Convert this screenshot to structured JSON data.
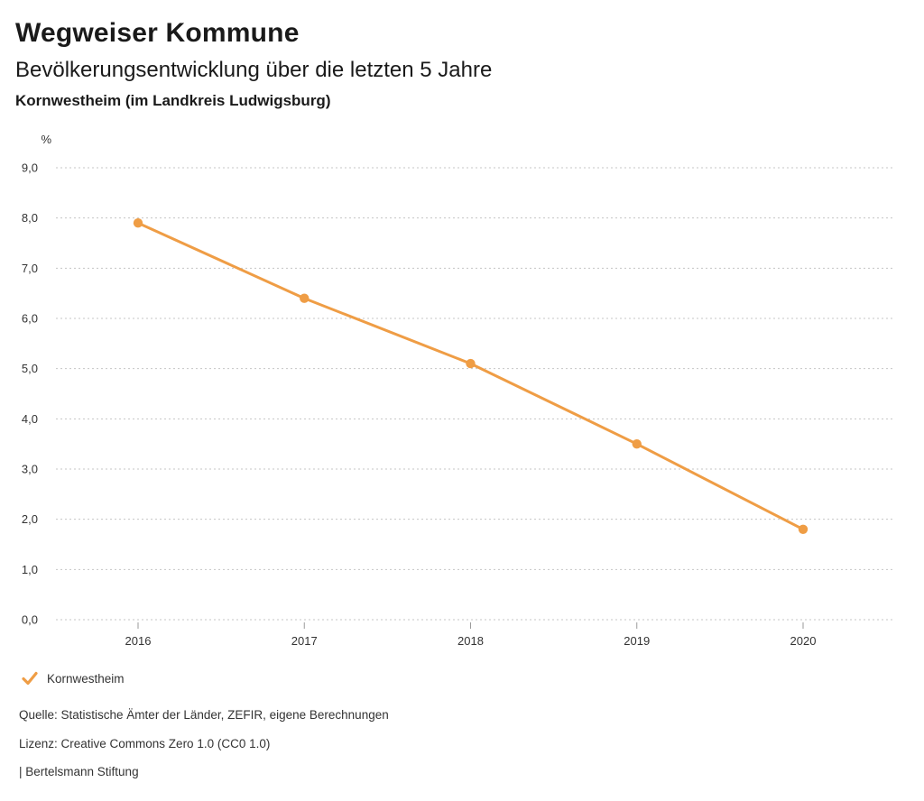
{
  "header": {
    "title": "Wegweiser Kommune",
    "subtitle": "Bevölkerungsentwicklung über die letzten 5 Jahre",
    "region": "Kornwestheim (im Landkreis Ludwigsburg)"
  },
  "chart_data": {
    "type": "line",
    "title": "Bevölkerungsentwicklung über die letzten 5 Jahre",
    "subtitle": "Kornwestheim (im Landkreis Ludwigsburg)",
    "unit": "%",
    "categories": [
      "2016",
      "2017",
      "2018",
      "2019",
      "2020"
    ],
    "series": [
      {
        "name": "Kornwestheim",
        "color": "#EF9D45",
        "values": [
          7.9,
          6.4,
          5.1,
          3.5,
          1.8
        ]
      }
    ],
    "ylim": [
      0,
      9
    ],
    "ytick_step": 1,
    "ytick_labels": [
      "0,0",
      "1,0",
      "2,0",
      "3,0",
      "4,0",
      "5,0",
      "6,0",
      "7,0",
      "8,0",
      "9,0"
    ],
    "xlabel": "",
    "ylabel": "%",
    "grid": "horizontal-dotted",
    "legend_position": "bottom-left"
  },
  "legend": {
    "items": [
      {
        "label": "Kornwestheim",
        "icon": "check-icon",
        "color": "#EF9D45"
      }
    ]
  },
  "footer": {
    "source": "Quelle: Statistische Ämter der Länder, ZEFIR, eigene Berechnungen",
    "license": "Lizenz: Creative Commons Zero 1.0 (CC0 1.0)",
    "attribution": "| Bertelsmann Stiftung"
  },
  "colors": {
    "accent": "#EF9D45",
    "grid": "#c5c5c5",
    "tick": "#9a9a9a",
    "axis_text": "#333333",
    "text": "#1a1a1a",
    "background": "#ffffff"
  }
}
